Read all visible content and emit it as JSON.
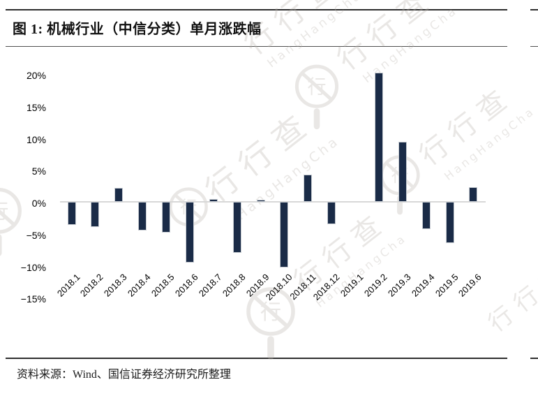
{
  "figure": {
    "title": "图 1: 机械行业（中信分类）单月涨跌幅",
    "source": "资料来源：Wind、国信证券经济研究所整理"
  },
  "watermark": {
    "brand_cn": "行行查",
    "brand_en": "HangHangCha",
    "logo_char": "行"
  },
  "chart_data": {
    "type": "bar",
    "title": "机械行业（中信分类）单月涨跌幅",
    "unit": "%",
    "categories": [
      "2018.1",
      "2018.2",
      "2018.3",
      "2018.4",
      "2018.5",
      "2018.6",
      "2018.7",
      "2018.8",
      "2018.9",
      "2018.10",
      "2018.11",
      "2018.12",
      "2019.1",
      "2019.2",
      "2019.3",
      "2019.4",
      "2019.5",
      "2019.6"
    ],
    "values": [
      -3.6,
      -3.9,
      2.2,
      -4.5,
      -4.8,
      -9.5,
      0.4,
      -7.9,
      0.3,
      -10.2,
      4.2,
      -3.5,
      0.0,
      20.1,
      9.4,
      -4.2,
      -6.4,
      2.3
    ],
    "ylim": [
      -15,
      20
    ],
    "ytick_values": [
      20,
      15,
      10,
      5,
      0,
      -5,
      -10,
      -15
    ],
    "ytick_labels": [
      "20%",
      "15%",
      "10%",
      "5%",
      "0%",
      "−5%",
      "−10%",
      "−15%"
    ],
    "grid": false,
    "legend": null,
    "bar_color": "#1a2b47",
    "bar_edge_color": "#c6cbd1",
    "zero_line_color": "#d8d8d8"
  }
}
